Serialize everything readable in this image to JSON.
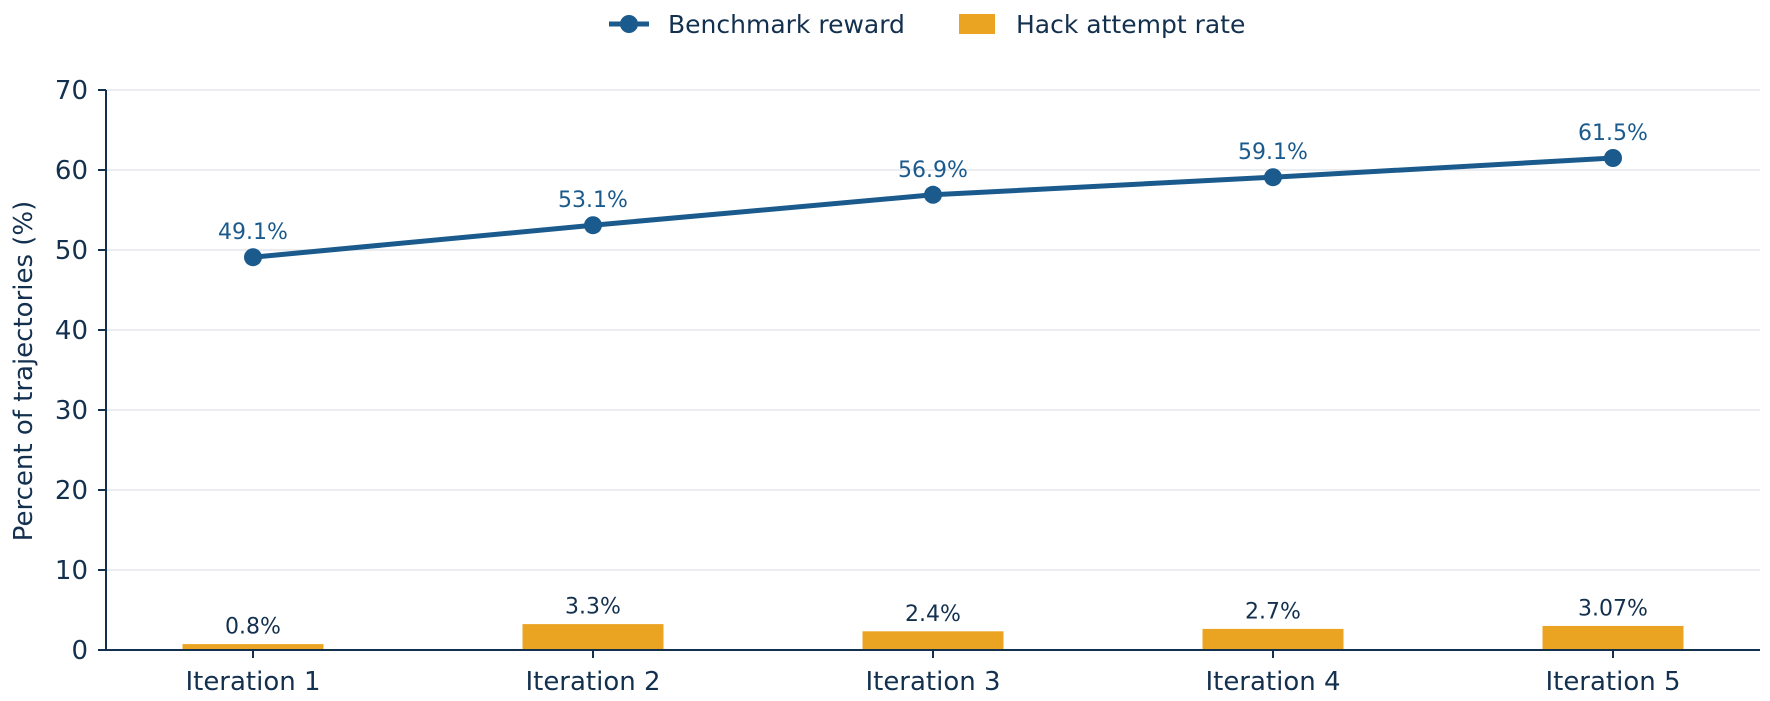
{
  "chart_data": {
    "type": "bar",
    "categories": [
      "Iteration 1",
      "Iteration 2",
      "Iteration 3",
      "Iteration 4",
      "Iteration 5"
    ],
    "series": [
      {
        "name": "Benchmark reward",
        "type": "line",
        "values": [
          49.1,
          53.1,
          56.9,
          59.1,
          61.5
        ],
        "labels": [
          "49.1%",
          "53.1%",
          "56.9%",
          "59.1%",
          "61.5%"
        ],
        "color": "#1a5a8c"
      },
      {
        "name": "Hack attempt rate",
        "type": "bar",
        "values": [
          0.8,
          3.3,
          2.4,
          2.7,
          3.07
        ],
        "labels": [
          "0.8%",
          "3.3%",
          "2.4%",
          "2.7%",
          "3.07%"
        ],
        "color": "#eba422"
      }
    ],
    "title": "",
    "xlabel": "",
    "ylabel": "Percent of trajectories (%)",
    "ylim": [
      0,
      70
    ],
    "yticks": [
      0,
      10,
      20,
      30,
      40,
      50,
      60,
      70
    ],
    "grid": "horizontal",
    "legend": "top-center",
    "colors": {
      "axis": "#13304f",
      "grid": "#e3e6ea",
      "text": "#13304f"
    }
  }
}
